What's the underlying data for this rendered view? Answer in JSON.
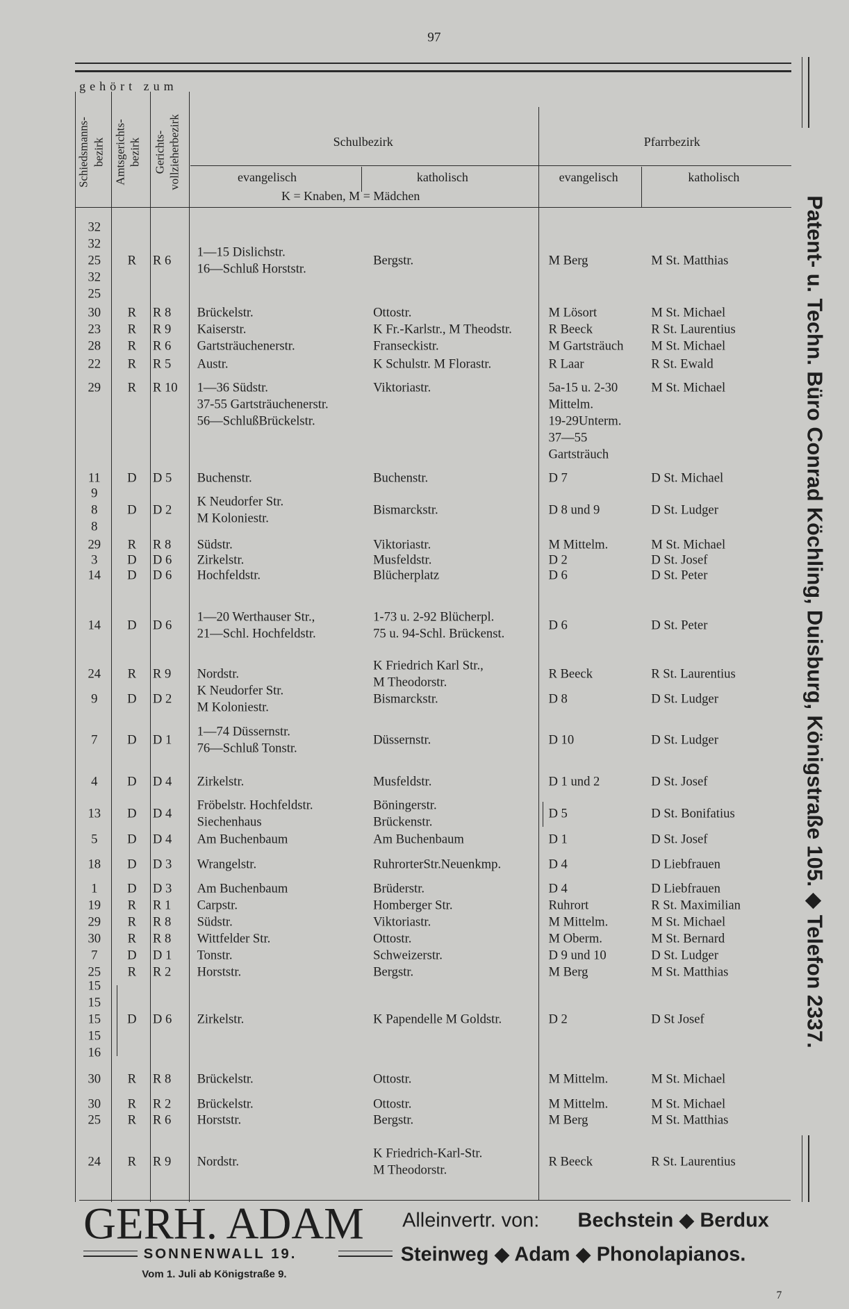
{
  "page_number": "97",
  "header": {
    "group_label": "gehört zum",
    "col_schied": [
      "Schiedsmanns-",
      "bezirk"
    ],
    "col_amt": [
      "Amtsgerichts-",
      "bezirk"
    ],
    "col_ger": [
      "Gerichts-",
      "vollzieherbezirk"
    ],
    "schulbezirk": "Schulbezirk",
    "schule_ev": "evangelisch",
    "schule_kath": "katholisch",
    "schule_note": "K = Knaben, M = Mädchen",
    "pfarrbezirk": "Pfarrbezirk",
    "pfarr_ev": "evangelisch",
    "pfarr_kath": "katholisch"
  },
  "rows": [
    {
      "schied": [
        32,
        32,
        25,
        32,
        25
      ],
      "amt": "R",
      "ger": "R 6",
      "schule_ev": [
        "1—15 Dislichstr.",
        "16—Schluß Horststr."
      ],
      "schule_kath": [
        "Bergstr."
      ],
      "pfarr_ev": [
        "M Berg"
      ],
      "pfarr_kath": "M St. Matthias"
    },
    {
      "schied": [
        30
      ],
      "amt": "R",
      "ger": "R 8",
      "schule_ev": [
        "Brückelstr."
      ],
      "schule_kath": [
        "Ottostr."
      ],
      "pfarr_ev": [
        "M Lösort"
      ],
      "pfarr_kath": "M St. Michael"
    },
    {
      "schied": [
        23
      ],
      "amt": "R",
      "ger": "R 9",
      "schule_ev": [
        "Kaiserstr."
      ],
      "schule_kath": [
        "K Fr.-Karlstr., M Theodstr."
      ],
      "pfarr_ev": [
        "R Beeck"
      ],
      "pfarr_kath": "R St. Laurentius"
    },
    {
      "schied": [
        28
      ],
      "amt": "R",
      "ger": "R 6",
      "schule_ev": [
        "Gartsträuchenerstr."
      ],
      "schule_kath": [
        "Franseckistr."
      ],
      "pfarr_ev": [
        "M Gartsträuch"
      ],
      "pfarr_kath": "M St. Michael"
    },
    {
      "schied": [
        22
      ],
      "amt": "R",
      "ger": "R 5",
      "schule_ev": [
        "Austr."
      ],
      "schule_kath": [
        "K Schulstr. M Florastr."
      ],
      "pfarr_ev": [
        "R Laar"
      ],
      "pfarr_kath": "R St. Ewald"
    },
    {
      "schied": [
        29
      ],
      "amt": "R",
      "ger": "R 10",
      "schule_ev": [
        "1—36 Südstr.",
        "37-55 Gartsträuchenerstr.",
        "56—SchlußBrückelstr."
      ],
      "schule_kath": [
        "Viktoriastr."
      ],
      "pfarr_ev": [
        "5a-15 u. 2-30",
        "Mittelm.",
        "19-29Unterm.",
        "37—55",
        "Gartsträuch"
      ],
      "pfarr_kath": "M St. Michael"
    },
    {
      "schied": [
        11
      ],
      "amt": "D",
      "ger": "D 5",
      "schule_ev": [
        "Buchenstr."
      ],
      "schule_kath": [
        "Buchenstr."
      ],
      "pfarr_ev": [
        "D 7"
      ],
      "pfarr_kath": "D St. Michael"
    },
    {
      "schied": [
        9,
        8,
        8
      ],
      "amt": "D",
      "ger": "D 2",
      "schule_ev": [
        "K Neudorfer Str.",
        "M Koloniestr."
      ],
      "schule_kath": [
        "Bismarckstr."
      ],
      "pfarr_ev": [
        "D 8 und 9"
      ],
      "pfarr_kath": "D St. Ludger"
    },
    {
      "schied": [
        29
      ],
      "amt": "R",
      "ger": "R 8",
      "schule_ev": [
        "Südstr."
      ],
      "schule_kath": [
        "Viktoriastr."
      ],
      "pfarr_ev": [
        "M Mittelm."
      ],
      "pfarr_kath": "M St. Michael"
    },
    {
      "schied": [
        3
      ],
      "amt": "D",
      "ger": "D 6",
      "schule_ev": [
        "Zirkelstr."
      ],
      "schule_kath": [
        "Musfeldstr."
      ],
      "pfarr_ev": [
        "D 2"
      ],
      "pfarr_kath": "D St. Josef"
    },
    {
      "schied": [
        14
      ],
      "amt": "D",
      "ger": "D 6",
      "schule_ev": [
        "Hochfeldstr."
      ],
      "schule_kath": [
        "Blücherplatz"
      ],
      "pfarr_ev": [
        "D 6"
      ],
      "pfarr_kath": "D St. Peter"
    },
    {
      "schied": [
        14
      ],
      "amt": "D",
      "ger": "D 6",
      "schule_ev": [
        "1—20 Werthauser Str.,",
        "21—Schl. Hochfeldstr."
      ],
      "schule_kath": [
        "1-73 u. 2-92 Blücherpl.",
        "75 u. 94-Schl. Brückenst."
      ],
      "pfarr_ev": [
        "D 6"
      ],
      "pfarr_kath": "D St. Peter"
    },
    {
      "schied": [
        24
      ],
      "amt": "R",
      "ger": "R 9",
      "schule_ev": [
        "Nordstr."
      ],
      "schule_kath": [
        "K Friedrich Karl Str.,",
        "M Theodorstr."
      ],
      "pfarr_ev": [
        "R Beeck"
      ],
      "pfarr_kath": "R St. Laurentius"
    },
    {
      "schied": [
        9
      ],
      "amt": "D",
      "ger": "D 2",
      "schule_ev": [
        "K Neudorfer Str.",
        "M Koloniestr."
      ],
      "schule_kath": [
        "Bismarckstr."
      ],
      "pfarr_ev": [
        "D 8"
      ],
      "pfarr_kath": "D St. Ludger"
    },
    {
      "schied": [
        7
      ],
      "amt": "D",
      "ger": "D 1",
      "schule_ev": [
        "1—74 Düssernstr.",
        "76—Schluß Tonstr."
      ],
      "schule_kath": [
        "Düssernstr."
      ],
      "pfarr_ev": [
        "D 10"
      ],
      "pfarr_kath": "D St. Ludger"
    },
    {
      "schied": [
        4
      ],
      "amt": "D",
      "ger": "D 4",
      "schule_ev": [
        "Zirkelstr."
      ],
      "schule_kath": [
        "Musfeldstr."
      ],
      "pfarr_ev": [
        "D 1 und 2"
      ],
      "pfarr_kath": "D St. Josef"
    },
    {
      "schied": [
        13
      ],
      "amt": "D",
      "ger": "D 4",
      "schule_ev": [
        "Fröbelstr. Hochfeldstr.",
        "Siechenhaus"
      ],
      "schule_kath": [
        "Böningerstr.",
        "Brückenstr."
      ],
      "pfarr_ev": [
        "D 5"
      ],
      "pfarr_kath": "D St. Bonifatius"
    },
    {
      "schied": [
        5
      ],
      "amt": "D",
      "ger": "D 4",
      "schule_ev": [
        "Am Buchenbaum"
      ],
      "schule_kath": [
        "Am Buchenbaum"
      ],
      "pfarr_ev": [
        "D 1"
      ],
      "pfarr_kath": "D St. Josef"
    },
    {
      "schied": [
        18
      ],
      "amt": "D",
      "ger": "D 3",
      "schule_ev": [
        "Wrangelstr."
      ],
      "schule_kath": [
        "RuhrorterStr.Neuenkmp."
      ],
      "pfarr_ev": [
        "D 4"
      ],
      "pfarr_kath": "D Liebfrauen"
    },
    {
      "schied": [
        1
      ],
      "amt": "D",
      "ger": "D 3",
      "schule_ev": [
        "Am Buchenbaum"
      ],
      "schule_kath": [
        "Brüderstr."
      ],
      "pfarr_ev": [
        "D 4"
      ],
      "pfarr_kath": "D Liebfrauen"
    },
    {
      "schied": [
        19
      ],
      "amt": "R",
      "ger": "R 1",
      "schule_ev": [
        "Carpstr."
      ],
      "schule_kath": [
        "Homberger Str."
      ],
      "pfarr_ev": [
        "Ruhrort"
      ],
      "pfarr_kath": "R St. Maximilian"
    },
    {
      "schied": [
        29
      ],
      "amt": "R",
      "ger": "R 8",
      "schule_ev": [
        "Südstr."
      ],
      "schule_kath": [
        "Viktoriastr."
      ],
      "pfarr_ev": [
        "M Mittelm."
      ],
      "pfarr_kath": "M St. Michael"
    },
    {
      "schied": [
        30
      ],
      "amt": "R",
      "ger": "R 8",
      "schule_ev": [
        "Wittfelder Str."
      ],
      "schule_kath": [
        "Ottostr."
      ],
      "pfarr_ev": [
        "M Oberm."
      ],
      "pfarr_kath": "M St. Bernard"
    },
    {
      "schied": [
        7
      ],
      "amt": "D",
      "ger": "D 1",
      "schule_ev": [
        "Tonstr."
      ],
      "schule_kath": [
        "Schweizerstr."
      ],
      "pfarr_ev": [
        "D 9 und 10"
      ],
      "pfarr_kath": "D St. Ludger"
    },
    {
      "schied": [
        25
      ],
      "amt": "R",
      "ger": "R 2",
      "schule_ev": [
        "Horststr."
      ],
      "schule_kath": [
        "Bergstr."
      ],
      "pfarr_ev": [
        "M Berg"
      ],
      "pfarr_kath": "M St. Matthias"
    },
    {
      "schied": [
        15,
        15,
        15,
        15,
        16
      ],
      "amt": "D",
      "ger": "D 6",
      "schule_ev": [
        "Zirkelstr."
      ],
      "schule_kath": [
        "K Papendelle M Goldstr."
      ],
      "pfarr_ev": [
        "D 2"
      ],
      "pfarr_kath": "D St Josef"
    },
    {
      "schied": [
        30
      ],
      "amt": "R",
      "ger": "R 8",
      "schule_ev": [
        "Brückelstr."
      ],
      "schule_kath": [
        "Ottostr."
      ],
      "pfarr_ev": [
        "M Mittelm."
      ],
      "pfarr_kath": "M St. Michael"
    },
    {
      "schied": [
        30
      ],
      "amt": "R",
      "ger": "R 2",
      "schule_ev": [
        "Brückelstr."
      ],
      "schule_kath": [
        "Ottostr."
      ],
      "pfarr_ev": [
        "M Mittelm."
      ],
      "pfarr_kath": "M St. Michael"
    },
    {
      "schied": [
        25
      ],
      "amt": "R",
      "ger": "R 6",
      "schule_ev": [
        "Horststr."
      ],
      "schule_kath": [
        "Bergstr."
      ],
      "pfarr_ev": [
        "M Berg"
      ],
      "pfarr_kath": "M St. Matthias"
    },
    {
      "schied": [
        24
      ],
      "amt": "R",
      "ger": "R 9",
      "schule_ev": [
        "Nordstr."
      ],
      "schule_kath": [
        "K Friedrich-Karl-Str.",
        "M Theodorstr."
      ],
      "pfarr_ev": [
        "R Beeck"
      ],
      "pfarr_kath": "R St. Laurentius"
    }
  ],
  "side_ad": "Patent- u. Techn. Büro Conrad Köchling, Duisburg, Königstraße 105. ◆ Telefon 2337.",
  "bottom_ad": {
    "name": "GERH. ADAM",
    "address": "SONNENWALL 19.",
    "note": "Vom 1. Juli ab Königstraße 9.",
    "line1_prefix": "Alleinvertr. von:",
    "line1_brands": "Bechstein ◆ Berdux",
    "line2": "Steinweg ◆ Adam ◆ Phonolapianos."
  },
  "footer_mark": "7"
}
